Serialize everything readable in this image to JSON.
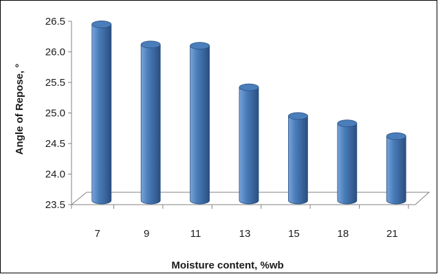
{
  "chart_data": {
    "type": "bar",
    "style": "3d-cylinder",
    "title": "",
    "xlabel": "Moisture content, %wb",
    "ylabel": "Angle of Repose, °",
    "categories": [
      "7",
      "9",
      "11",
      "13",
      "15",
      "18",
      "21"
    ],
    "series": [
      {
        "values": [
          26.45,
          26.12,
          26.1,
          25.42,
          24.95,
          24.83,
          24.62
        ]
      }
    ],
    "ylim": [
      23.5,
      26.5
    ],
    "yticks": [
      "23.5",
      "24.0",
      "24.5",
      "25.0",
      "25.5",
      "26.0",
      "26.5"
    ],
    "grid": false,
    "legend": "none",
    "colors": {
      "bar": "#4a7ebb",
      "bar_light": "#7aa4d8",
      "bar_dark": "#2a4f80",
      "floor": "#ffffff",
      "axis": "#808080"
    }
  }
}
